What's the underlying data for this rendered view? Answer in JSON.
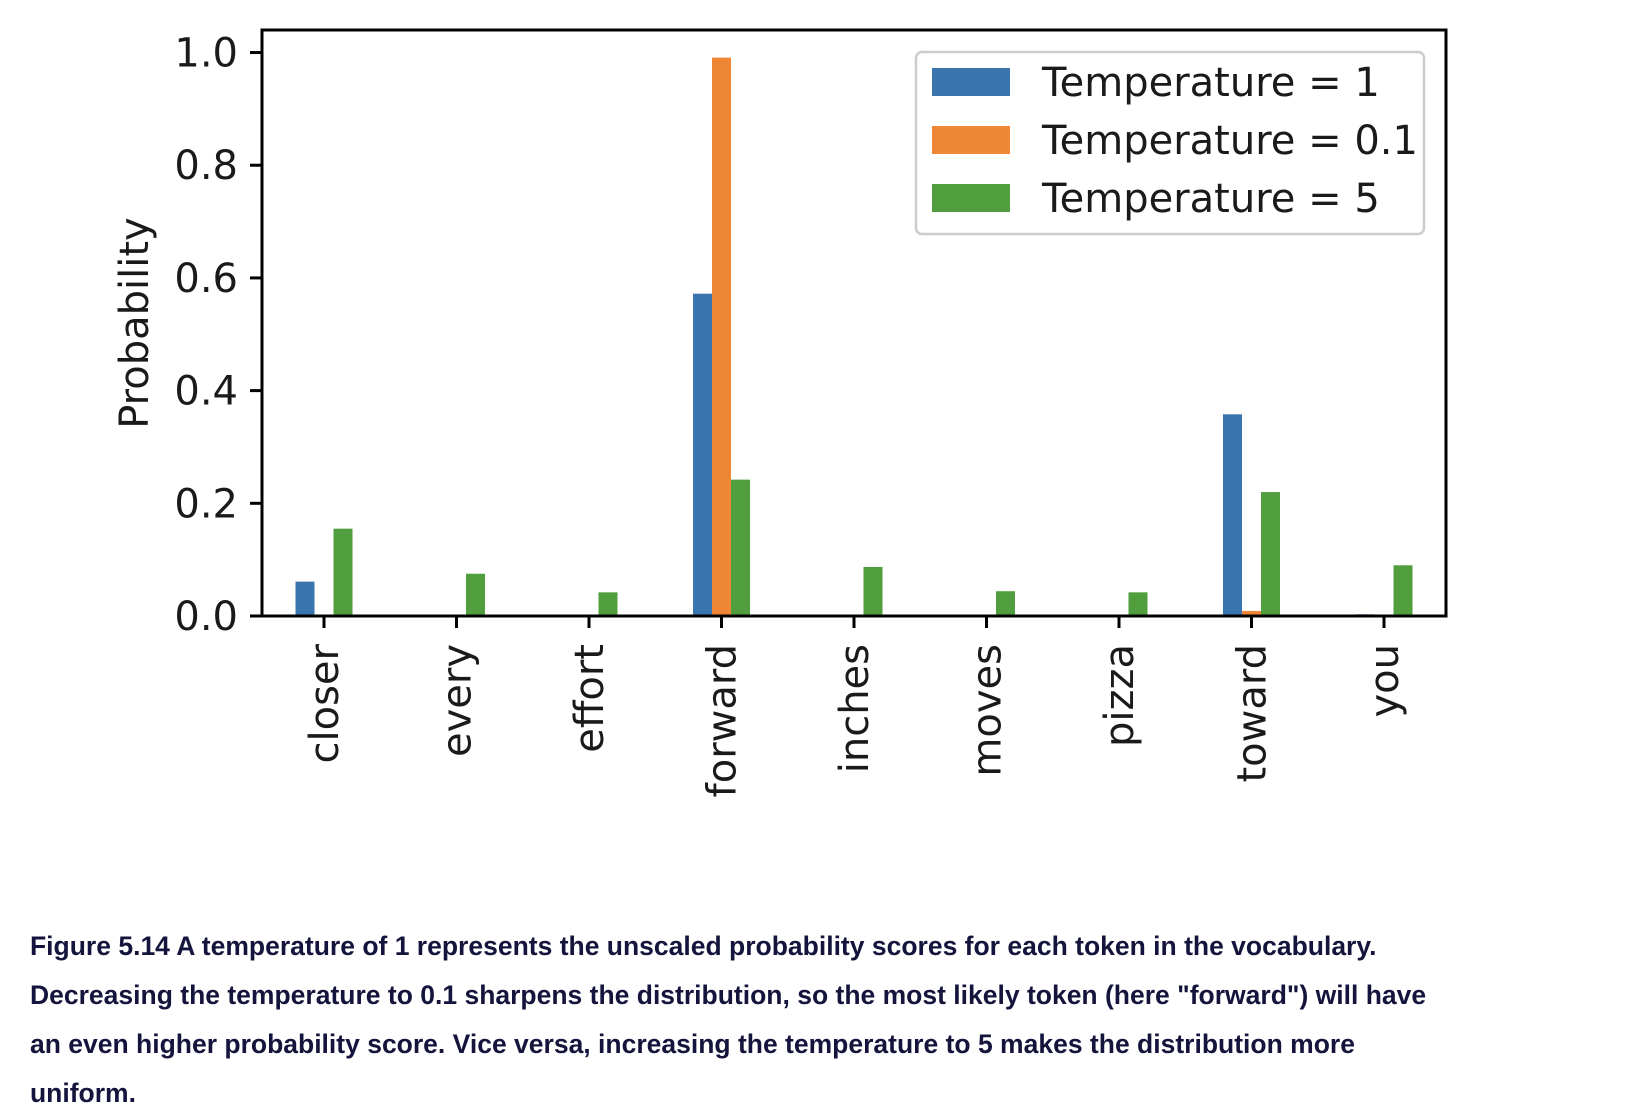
{
  "chart_data": {
    "type": "bar",
    "title": "",
    "xlabel": "",
    "ylabel": "Probability",
    "ylim": [
      0,
      1.04
    ],
    "yticks": [
      "0.0",
      "0.2",
      "0.4",
      "0.6",
      "0.8",
      "1.0"
    ],
    "categories": [
      "closer",
      "every",
      "effort",
      "forward",
      "inches",
      "moves",
      "pizza",
      "toward",
      "you"
    ],
    "series": [
      {
        "name": "Temperature = 1",
        "color": "#3b75af",
        "values": [
          0.061,
          0.0,
          0.0,
          0.572,
          0.002,
          0.0,
          0.0,
          0.358,
          0.003
        ]
      },
      {
        "name": "Temperature = 0.1",
        "color": "#ef8636",
        "values": [
          0.0,
          0.0,
          0.0,
          0.991,
          0.0,
          0.0,
          0.0,
          0.009,
          0.0
        ]
      },
      {
        "name": "Temperature = 5",
        "color": "#519e3e",
        "values": [
          0.155,
          0.075,
          0.042,
          0.242,
          0.087,
          0.044,
          0.042,
          0.22,
          0.09
        ]
      }
    ],
    "legend_position": "top-right",
    "grid": false
  },
  "caption": {
    "lines": [
      "Figure 5.14 A temperature of 1 represents the unscaled probability scores for each token in the vocabulary.",
      "Decreasing the temperature to 0.1 sharpens the distribution, so the most likely token (here \"forward\") will have",
      "an even higher probability score. Vice versa, increasing the temperature to 5 makes the distribution more",
      "uniform."
    ]
  }
}
